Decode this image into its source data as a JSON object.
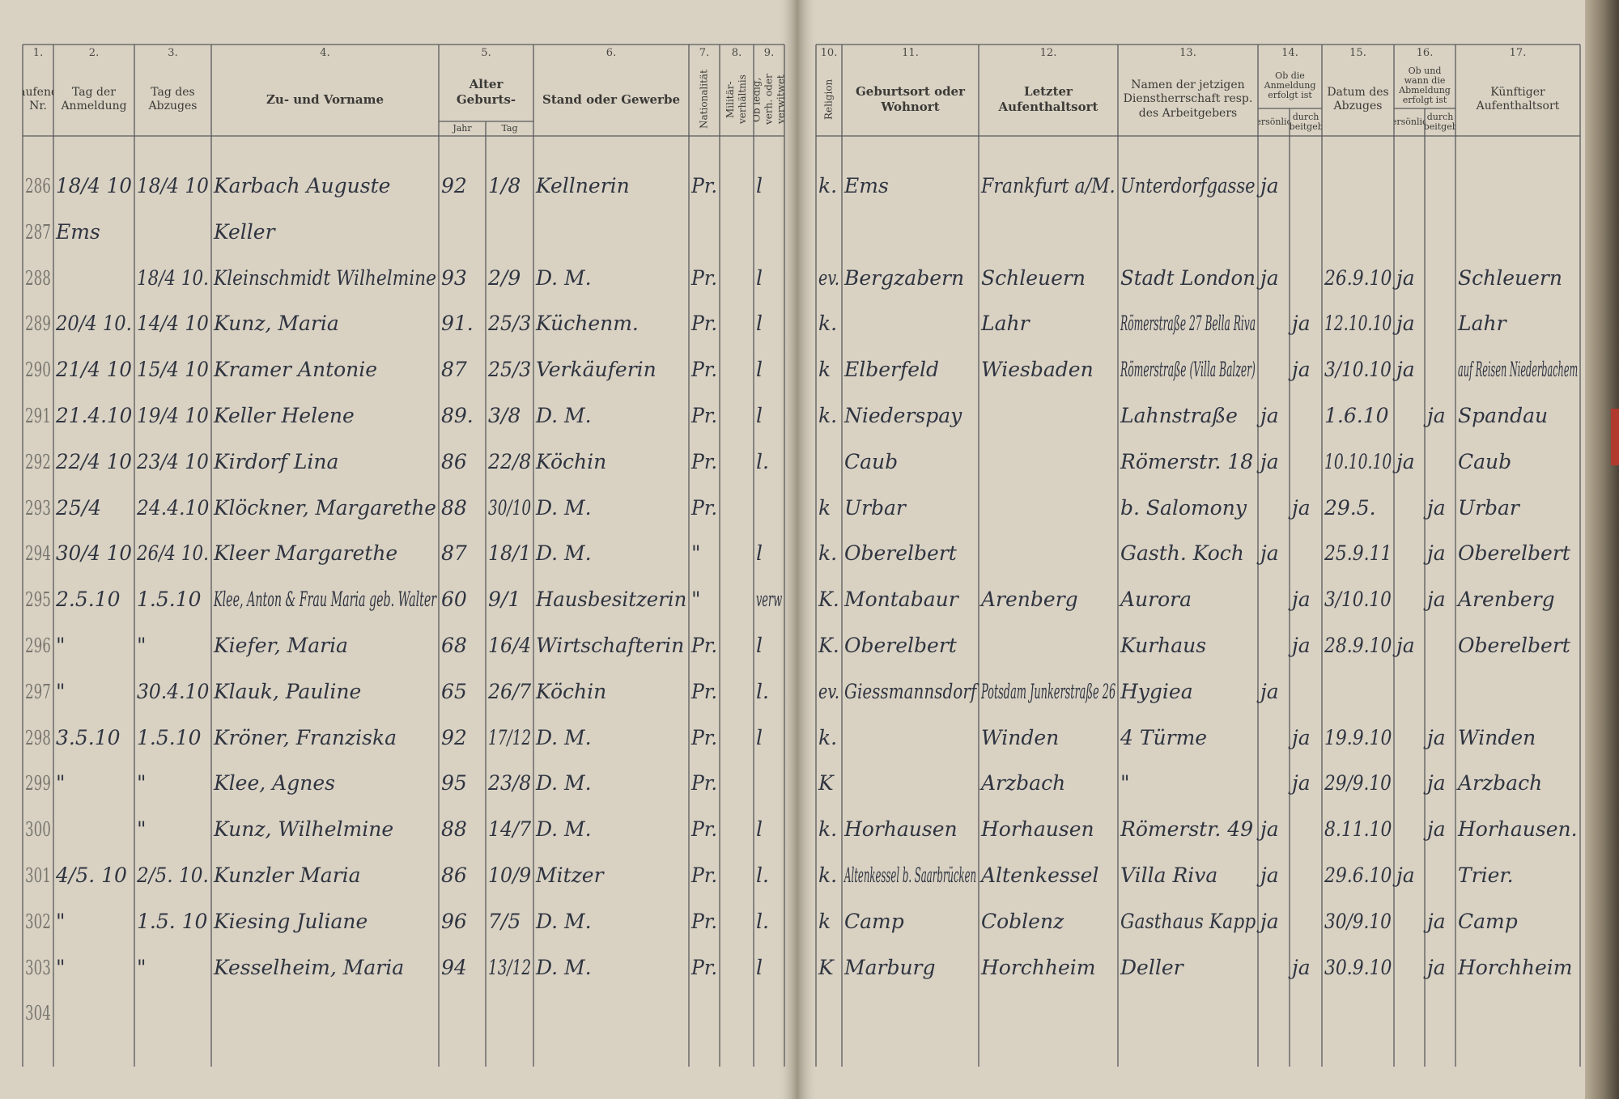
{
  "columns": [
    {
      "number": "1.",
      "header": "Laufende Nr."
    },
    {
      "number": "2.",
      "header": "Tag der Anmeldung"
    },
    {
      "number": "3.",
      "header": "Tag des Abzuges"
    },
    {
      "number": "4.",
      "header": "Zu- und Vorname"
    },
    {
      "number": "5.",
      "header": "Alter Geburts-",
      "sub": [
        "Jahr",
        "Tag"
      ]
    },
    {
      "number": "6.",
      "header": "Stand oder Gewerbe"
    },
    {
      "number": "7.",
      "header": "Nationalität"
    },
    {
      "number": "8.",
      "header": "Militär-verhältnis"
    },
    {
      "number": "9.",
      "header": "Ob ledig, verh. oder verwitwet"
    },
    {
      "number": "10.",
      "header": "Religion"
    },
    {
      "number": "11.",
      "header": "Geburtsort oder Wohnort"
    },
    {
      "number": "12.",
      "header": "Letzter Aufenthaltsort"
    },
    {
      "number": "13.",
      "header": "Namen der jetzigen Dienstherrschaft resp. des Arbeitgebers"
    },
    {
      "number": "14.",
      "header": "Ob die Anmeldung erfolgt ist",
      "sub": [
        "persönlich",
        "durch Arbeitgeber"
      ]
    },
    {
      "number": "15.",
      "header": "Datum des Abzuges"
    },
    {
      "number": "16.",
      "header": "Ob und wann die Abmeldung erfolgt ist",
      "sub": [
        "persönlich",
        "durch Arbeitgeber"
      ]
    },
    {
      "number": "17.",
      "header": "Künftiger Aufenthaltsort"
    }
  ],
  "rows": [
    [
      "286",
      "18/4 10",
      "18/4 10",
      "Karbach Auguste",
      "92",
      "1/8",
      "Kellnerin",
      "Pr.",
      null,
      "l",
      "k.",
      "Ems",
      "Frankfurt a/M.",
      "Unterdorfgasse",
      "ja",
      null,
      null,
      null,
      null,
      null
    ],
    [
      "287",
      "Ems",
      null,
      "Keller",
      null,
      null,
      null,
      null,
      null,
      null,
      null,
      null,
      null,
      null,
      null,
      null,
      null,
      null,
      null,
      null
    ],
    [
      "288",
      null,
      "18/4 10.",
      "Kleinschmidt Wilhelmine",
      "93",
      "2/9",
      "D. M.",
      "Pr.",
      null,
      "l",
      "ev.",
      "Bergzabern",
      "Schleuern",
      "Stadt London",
      "ja",
      null,
      "26.9.10",
      "ja",
      null,
      "Schleuern"
    ],
    [
      "289",
      "20/4 10.",
      "14/4 10",
      "Kunz, Maria",
      "91.",
      "25/3",
      "Küchenm.",
      "Pr.",
      null,
      "l",
      "k.",
      null,
      "Lahr",
      "Römerstraße 27 Bella Riva",
      null,
      "ja",
      "12.10.10",
      "ja",
      null,
      "Lahr"
    ],
    [
      "290",
      "21/4 10",
      "15/4 10",
      "Kramer Antonie",
      "87",
      "25/3",
      "Verkäuferin",
      "Pr.",
      null,
      "l",
      "k",
      "Elberfeld",
      "Wiesbaden",
      "Römerstraße (Villa Balzer)",
      null,
      "ja",
      "3/10.10",
      "ja",
      null,
      "auf Reisen Niederbachem"
    ],
    [
      "291",
      "21.4.10",
      "19/4 10",
      "Keller Helene",
      "89.",
      "3/8",
      "D. M.",
      "Pr.",
      null,
      "l",
      "k.",
      "Niederspay",
      null,
      "Lahnstraße",
      "ja",
      null,
      "1.6.10",
      null,
      "ja",
      "Spandau"
    ],
    [
      "292",
      "22/4 10",
      "23/4 10",
      "Kirdorf Lina",
      "86",
      "22/8",
      "Köchin",
      "Pr.",
      null,
      "l.",
      null,
      "Caub",
      null,
      "Römerstr. 18",
      "ja",
      null,
      "10.10.10",
      "ja",
      null,
      "Caub"
    ],
    [
      "293",
      "25/4",
      "24.4.10",
      "Klöckner, Margarethe",
      "88",
      "30/10",
      "D. M.",
      "Pr.",
      null,
      null,
      "k",
      "Urbar",
      null,
      "b. Salomony",
      null,
      "ja",
      "29.5.",
      null,
      "ja",
      "Urbar"
    ],
    [
      "294",
      "30/4 10",
      "26/4 10.",
      "Kleer Margarethe",
      "87",
      "18/1",
      "D. M.",
      "\"",
      null,
      "l",
      "k.",
      "Oberelbert",
      null,
      "Gasth. Koch",
      "ja",
      null,
      "25.9.11",
      null,
      "ja",
      "Oberelbert"
    ],
    [
      "295",
      "2.5.10",
      "1.5.10",
      "Klee, Anton & Frau Maria geb. Walter",
      "60",
      "9/1",
      "Hausbesitzerin",
      "\"",
      null,
      "verw",
      "K.",
      "Montabaur",
      "Arenberg",
      "Aurora",
      null,
      "ja",
      "3/10.10",
      null,
      "ja",
      "Arenberg"
    ],
    [
      "296",
      "\"",
      "\"",
      "Kiefer, Maria",
      "68",
      "16/4",
      "Wirtschafterin",
      "Pr.",
      null,
      "l",
      "K.",
      "Oberelbert",
      null,
      "Kurhaus",
      null,
      "ja",
      "28.9.10",
      "ja",
      null,
      "Oberelbert"
    ],
    [
      "297",
      "\"",
      "30.4.10",
      "Klauk, Pauline",
      "65",
      "26/7",
      "Köchin",
      "Pr.",
      null,
      "l.",
      "ev.",
      "Giessmannsdorf",
      "Potsdam Junkerstraße 26",
      "Hygiea",
      "ja",
      null,
      null,
      null,
      null,
      null
    ],
    [
      "298",
      "3.5.10",
      "1.5.10",
      "Kröner, Franziska",
      "92",
      "17/12",
      "D. M.",
      "Pr.",
      null,
      "l",
      "k.",
      null,
      "Winden",
      "4 Türme",
      null,
      "ja",
      "19.9.10",
      null,
      "ja",
      "Winden"
    ],
    [
      "299",
      "\"",
      "\"",
      "Klee, Agnes",
      "95",
      "23/8",
      "D. M.",
      "Pr.",
      null,
      null,
      "K",
      null,
      "Arzbach",
      "\"",
      null,
      "ja",
      "29/9.10",
      null,
      "ja",
      "Arzbach"
    ],
    [
      "300",
      null,
      "\"",
      "Kunz, Wilhelmine",
      "88",
      "14/7",
      "D. M.",
      "Pr.",
      null,
      "l",
      "k.",
      "Horhausen",
      "Horhausen",
      "Römerstr. 49",
      "ja",
      null,
      "8.11.10",
      null,
      "ja",
      "Horhausen."
    ],
    [
      "301",
      "4/5. 10",
      "2/5. 10.",
      "Kunzler Maria",
      "86",
      "10/9",
      "Mitzer",
      "Pr.",
      null,
      "l.",
      "k.",
      "Altenkessel b. Saarbrücken",
      "Altenkessel",
      "Villa Riva",
      "ja",
      null,
      "29.6.10",
      "ja",
      null,
      "Trier."
    ],
    [
      "302",
      "\"",
      "1.5. 10",
      "Kiesing Juliane",
      "96",
      "7/5",
      "D. M.",
      "Pr.",
      null,
      "l.",
      "k",
      "Camp",
      "Coblenz",
      "Gasthaus Kapp",
      "ja",
      null,
      "30/9.10",
      null,
      "ja",
      "Camp"
    ],
    [
      "303",
      "\"",
      "\"",
      "Kesselheim, Maria",
      "94",
      "13/12",
      "D. M.",
      "Pr.",
      null,
      "l",
      "K",
      "Marburg",
      "Horchheim",
      "Deller",
      null,
      "ja",
      "30.9.10",
      null,
      "ja",
      "Horchheim"
    ],
    [
      "304",
      null,
      null,
      null,
      null,
      null,
      null,
      null,
      null,
      null,
      null,
      null,
      null,
      null,
      null,
      null,
      null,
      null,
      null,
      null
    ]
  ]
}
